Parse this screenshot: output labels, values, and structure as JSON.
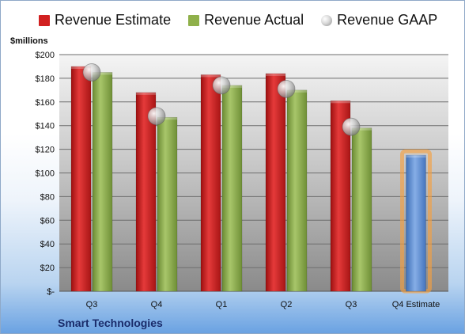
{
  "chart_data": {
    "type": "bar",
    "units": "$millions",
    "company": "Smart Technologies",
    "categories": [
      "Q3",
      "Q4",
      "Q1",
      "Q2",
      "Q3",
      "Q4 Estimate"
    ],
    "series": [
      {
        "name": "Revenue Estimate",
        "kind": "bar",
        "color": "#d12020",
        "values": [
          190,
          168,
          183,
          184,
          161,
          null
        ]
      },
      {
        "name": "Revenue Actual",
        "kind": "bar",
        "color": "#8fb04a",
        "values": [
          185,
          147,
          174,
          170,
          138,
          null
        ]
      },
      {
        "name": "Revenue GAAP",
        "kind": "marker",
        "color": "#c8c8c8",
        "values": [
          185,
          148,
          174,
          171,
          139,
          null
        ]
      },
      {
        "name": "Q4 Estimate",
        "kind": "bar",
        "color": "#5b8fd6",
        "highlight": "#f5a040",
        "values": [
          null,
          null,
          null,
          null,
          null,
          115
        ]
      }
    ],
    "y_ticks": [
      "$-",
      "$20",
      "$40",
      "$60",
      "$80",
      "$100",
      "$120",
      "$140",
      "$160",
      "$180",
      "$200"
    ],
    "ylim": [
      0,
      200
    ],
    "grid": true,
    "legend_position": "top"
  }
}
